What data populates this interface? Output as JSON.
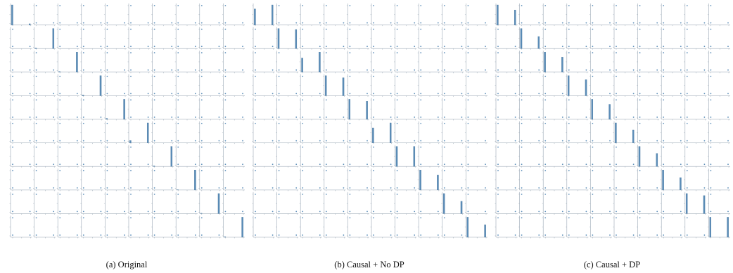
{
  "figure": {
    "captions": [
      "(a) Original",
      "(b) Causal + No DP",
      "(c) Causal + DP"
    ]
  },
  "colors": {
    "bar": "#5b8db8",
    "bar_dark": "#3f6f99",
    "axis": "#9aa7b4"
  },
  "chart_data": [
    {
      "type": "bar",
      "title": "",
      "caption": "(a) Original",
      "grid_rows": 10,
      "grid_cols": 10,
      "diagonal": "histogram",
      "off_diagonal": "scatter",
      "diagonal_histograms": [
        {
          "bars": [
            1.0,
            0.0,
            0.0,
            0.0,
            0.0,
            0.0,
            0.0,
            0.0,
            0.0,
            0.06
          ]
        },
        {
          "bars": [
            0.03,
            0.0,
            0.0,
            0.0,
            0.0,
            0.0,
            0.0,
            0.0,
            0.0,
            1.0
          ]
        },
        {
          "bars": [
            0.03,
            0.0,
            0.0,
            0.0,
            0.0,
            0.0,
            0.0,
            0.0,
            0.0,
            1.0
          ]
        },
        {
          "bars": [
            0.04,
            0.0,
            0.0,
            0.0,
            0.0,
            0.0,
            0.0,
            0.0,
            0.0,
            1.0
          ]
        },
        {
          "bars": [
            0.05,
            0.0,
            0.0,
            0.0,
            0.0,
            0.0,
            0.0,
            0.0,
            0.0,
            1.0
          ]
        },
        {
          "bars": [
            0.12,
            0.0,
            0.0,
            0.0,
            0.0,
            0.0,
            0.0,
            0.0,
            0.0,
            1.0
          ]
        },
        {
          "bars": [
            0.03,
            0.0,
            0.0,
            0.0,
            0.0,
            0.0,
            0.0,
            0.0,
            0.0,
            1.0
          ]
        },
        {
          "bars": [
            0.02,
            0.0,
            0.0,
            0.0,
            0.0,
            0.0,
            0.0,
            0.0,
            0.0,
            1.0
          ]
        },
        {
          "bars": [
            0.02,
            0.0,
            0.0,
            0.0,
            0.0,
            0.0,
            0.0,
            0.0,
            0.0,
            1.0
          ]
        },
        {
          "bars": [
            0.02,
            0.0,
            0.0,
            0.0,
            0.0,
            0.0,
            0.0,
            0.0,
            0.0,
            1.0
          ]
        }
      ]
    },
    {
      "type": "bar",
      "title": "",
      "caption": "(b) Causal + No DP",
      "grid_rows": 10,
      "grid_cols": 10,
      "diagonal": "histogram",
      "off_diagonal": "scatter",
      "diagonal_histograms": [
        {
          "bars": [
            0.8,
            0.0,
            0.0,
            0.0,
            0.0,
            0.0,
            0.0,
            0.0,
            0.0,
            1.0
          ]
        },
        {
          "bars": [
            1.0,
            0.0,
            0.0,
            0.0,
            0.0,
            0.0,
            0.0,
            0.0,
            0.0,
            0.95
          ]
        },
        {
          "bars": [
            0.7,
            0.0,
            0.0,
            0.0,
            0.0,
            0.0,
            0.0,
            0.0,
            0.0,
            1.0
          ]
        },
        {
          "bars": [
            1.0,
            0.0,
            0.0,
            0.0,
            0.0,
            0.0,
            0.0,
            0.0,
            0.0,
            0.9
          ]
        },
        {
          "bars": [
            1.0,
            0.0,
            0.0,
            0.0,
            0.0,
            0.0,
            0.0,
            0.0,
            0.0,
            0.9
          ]
        },
        {
          "bars": [
            0.75,
            0.0,
            0.0,
            0.0,
            0.0,
            0.0,
            0.0,
            0.0,
            0.0,
            1.0
          ]
        },
        {
          "bars": [
            1.0,
            0.0,
            0.0,
            0.0,
            0.0,
            0.0,
            0.0,
            0.0,
            0.0,
            1.0
          ]
        },
        {
          "bars": [
            1.0,
            0.0,
            0.0,
            0.0,
            0.0,
            0.0,
            0.0,
            0.0,
            0.0,
            0.75
          ]
        },
        {
          "bars": [
            1.0,
            0.0,
            0.0,
            0.0,
            0.0,
            0.0,
            0.0,
            0.0,
            0.0,
            0.62
          ]
        },
        {
          "bars": [
            1.0,
            0.0,
            0.0,
            0.0,
            0.0,
            0.0,
            0.0,
            0.0,
            0.0,
            0.62
          ]
        }
      ]
    },
    {
      "type": "bar",
      "title": "",
      "caption": "(c) Causal + DP",
      "grid_rows": 10,
      "grid_cols": 10,
      "diagonal": "histogram",
      "off_diagonal": "scatter",
      "diagonal_histograms": [
        {
          "bars": [
            1.0,
            0.0,
            0.0,
            0.0,
            0.0,
            0.0,
            0.0,
            0.0,
            0.0,
            0.75
          ]
        },
        {
          "bars": [
            1.0,
            0.0,
            0.0,
            0.0,
            0.0,
            0.0,
            0.0,
            0.0,
            0.0,
            0.6
          ]
        },
        {
          "bars": [
            1.0,
            0.0,
            0.0,
            0.0,
            0.0,
            0.0,
            0.0,
            0.0,
            0.0,
            0.75
          ]
        },
        {
          "bars": [
            1.0,
            0.0,
            0.0,
            0.0,
            0.0,
            0.0,
            0.0,
            0.0,
            0.0,
            0.8
          ]
        },
        {
          "bars": [
            1.0,
            0.0,
            0.0,
            0.0,
            0.0,
            0.0,
            0.0,
            0.0,
            0.0,
            0.75
          ]
        },
        {
          "bars": [
            1.0,
            0.0,
            0.0,
            0.0,
            0.0,
            0.0,
            0.0,
            0.0,
            0.0,
            0.65
          ]
        },
        {
          "bars": [
            1.0,
            0.0,
            0.0,
            0.0,
            0.0,
            0.0,
            0.0,
            0.0,
            0.0,
            0.65
          ]
        },
        {
          "bars": [
            1.0,
            0.0,
            0.0,
            0.0,
            0.0,
            0.0,
            0.0,
            0.0,
            0.0,
            0.62
          ]
        },
        {
          "bars": [
            1.0,
            0.0,
            0.0,
            0.0,
            0.0,
            0.0,
            0.0,
            0.0,
            0.0,
            0.9
          ]
        },
        {
          "bars": [
            1.0,
            0.0,
            0.0,
            0.0,
            0.0,
            0.0,
            0.0,
            0.0,
            0.0,
            1.0
          ]
        }
      ]
    }
  ]
}
